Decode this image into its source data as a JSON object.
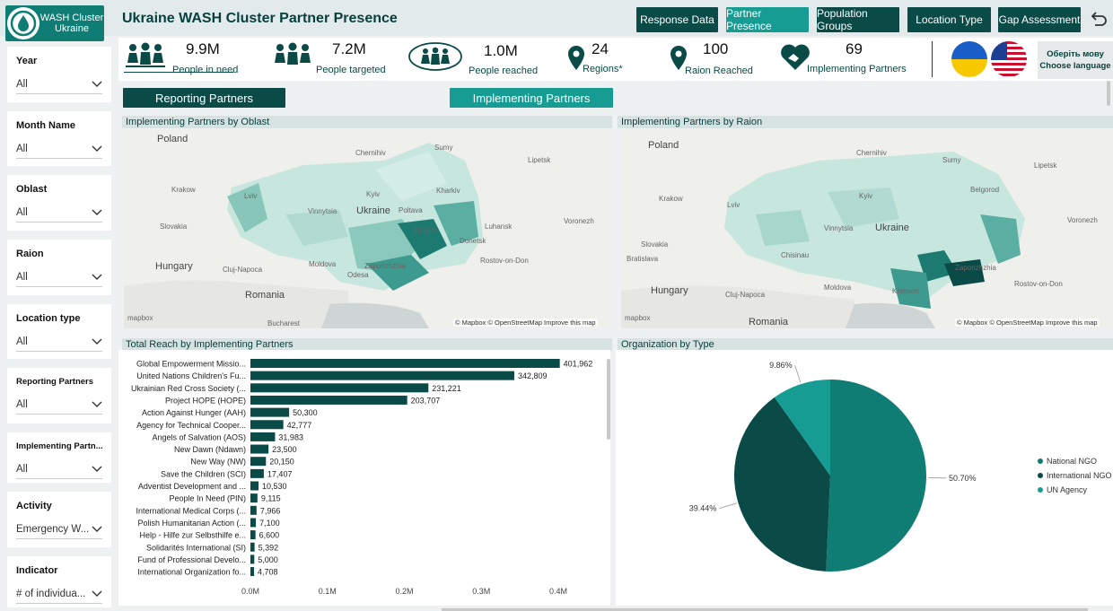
{
  "logo": {
    "line1": "WASH Cluster",
    "line2": "Ukraine"
  },
  "title": "Ukraine WASH Cluster Partner Presence",
  "nav": [
    "Response Data",
    "Partner Presence",
    "Population Groups",
    "Location Type",
    "Gap Assessment"
  ],
  "kpis": [
    {
      "value": "9.9M",
      "label": "People in need",
      "icon": "people-group-icon"
    },
    {
      "value": "7.2M",
      "label": "People targeted",
      "icon": "people-group-icon"
    },
    {
      "value": "1.0M",
      "label": "People reached",
      "icon": "people-circle-icon"
    },
    {
      "value": "24",
      "label": "Regions*",
      "icon": "location-pin-icon"
    },
    {
      "value": "100",
      "label": "Raion Reached",
      "icon": "location-pin-icon"
    },
    {
      "value": "69",
      "label": "Implementing Partners",
      "icon": "handshake-heart-icon"
    }
  ],
  "language": {
    "line1": "Оберіть мову",
    "line2": "Choose language"
  },
  "slicers": [
    {
      "label": "Year",
      "value": "All"
    },
    {
      "label": "Month Name",
      "value": "All"
    },
    {
      "label": "Oblast",
      "value": "All"
    },
    {
      "label": "Raion",
      "value": "All"
    },
    {
      "label": "Location type",
      "value": "All"
    },
    {
      "label": "Reporting Partners",
      "value": "All"
    },
    {
      "label": "Implementing Partn...",
      "value": "All"
    },
    {
      "label": "Activity",
      "value": "Emergency W..."
    },
    {
      "label": "Indicator",
      "value": "# of individua..."
    }
  ],
  "toggles": {
    "reporting": "Reporting Partners",
    "implementing": "Implementing Partners"
  },
  "map1": {
    "title": "Implementing Partners by Oblast",
    "labels": [
      "Poland",
      "Ukraine",
      "Slovakia",
      "Hungary",
      "Moldova",
      "Romania",
      "Rostov-on-Don",
      "Cluj-Napoca",
      "Bucharest",
      "Krakow",
      "Kyiv",
      "Vinnytsia",
      "Chernihiv",
      "Sumy",
      "Kharkiv",
      "Luhansk",
      "Voronezh",
      "Lipetsk",
      "Lviv",
      "Odesa",
      "Dnipro",
      "Donetsk",
      "Poltava",
      "Zaporizhzhia"
    ],
    "attribution": "© Mapbox © OpenStreetMap  Improve this map",
    "brand": "mapbox"
  },
  "map2": {
    "title": "Implementing Partners by Raion",
    "labels": [
      "Poland",
      "Ukraine",
      "Slovakia",
      "Hungary",
      "Moldova",
      "Romania",
      "Rostov-on-Don",
      "Cluj-Napoca",
      "Bratislava",
      "Krakow",
      "Kyiv",
      "Vinnytsia",
      "Chernihiv",
      "Sumy",
      "Belgorod",
      "Voronezh",
      "Lipetsk",
      "Lviv",
      "Chisinau",
      "Kherson",
      "Zaporizhzhia"
    ],
    "attribution": "© Mapbox © OpenStreetMap  Improve this map",
    "brand": "mapbox"
  },
  "chart_data": [
    {
      "type": "bar",
      "title": "Total Reach by Implementing Partners",
      "orientation": "horizontal",
      "categories": [
        "Global Empowerment Missio...",
        "United Nations Children's Fu...",
        "Ukrainian Red Cross Society (...",
        "Project HOPE (HOPE)",
        "Action Against Hunger (AAH)",
        "Agency for Technical Cooper...",
        "Angels of Salvation (AOS)",
        "New Dawn (Ndawn)",
        "New Way (NW)",
        "Save the Children (SCI)",
        "Adventist Development and ...",
        "People In Need (PIN)",
        "International Medical Corps (...",
        "Polish Humanitarian Action (...",
        "Help - Hilfe zur Selbsthilfe e...",
        "Solidarités International (SI)",
        "Fund of Professional Develo...",
        "International Organization fo..."
      ],
      "values": [
        401962,
        342809,
        231221,
        203707,
        50300,
        42777,
        31983,
        23500,
        20150,
        17407,
        10530,
        9115,
        7966,
        7100,
        6600,
        5392,
        5000,
        4708
      ],
      "value_labels": [
        "401,962",
        "342,809",
        "231,221",
        "203,707",
        "50,300",
        "42,777",
        "31,983",
        "23,500",
        "20,150",
        "17,407",
        "10,530",
        "9,115",
        "7,966",
        "7,100",
        "6,600",
        "5,392",
        "5,000",
        "4,708"
      ],
      "xticks": [
        "0.0M",
        "0.1M",
        "0.2M",
        "0.3M",
        "0.4M"
      ],
      "xlim": [
        0,
        400000
      ],
      "color": "#0a4a47"
    },
    {
      "type": "pie",
      "title": "Organization by Type",
      "slices": [
        {
          "name": "National NGO",
          "value": 50.7,
          "label": "50.70%",
          "color": "#0f7d74"
        },
        {
          "name": "International NGO",
          "value": 39.44,
          "label": "39.44%",
          "color": "#0a4a47"
        },
        {
          "name": "UN Agency",
          "value": 9.86,
          "label": "9.86%",
          "color": "#169c92"
        }
      ],
      "legend_position": "right"
    }
  ]
}
